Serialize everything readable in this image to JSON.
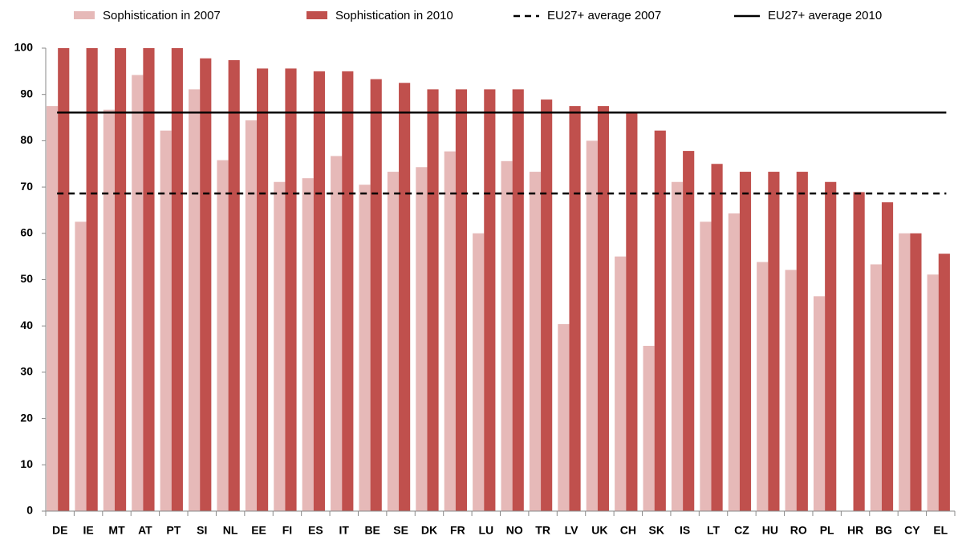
{
  "chart_data": {
    "type": "bar",
    "categories": [
      "DE",
      "IE",
      "MT",
      "AT",
      "PT",
      "SI",
      "NL",
      "EE",
      "FI",
      "ES",
      "IT",
      "BE",
      "SE",
      "DK",
      "FR",
      "LU",
      "NO",
      "TR",
      "LV",
      "UK",
      "CH",
      "SK",
      "IS",
      "LT",
      "CZ",
      "HU",
      "RO",
      "PL",
      "HR",
      "BG",
      "CY",
      "EL"
    ],
    "series": [
      {
        "name": "Sophistication in 2007",
        "color": "#e6b9b8",
        "values": [
          87.5,
          62.5,
          86.7,
          94.2,
          82.2,
          91.1,
          75.8,
          84.4,
          71.1,
          71.9,
          76.7,
          70.5,
          73.3,
          74.3,
          77.7,
          60,
          75.6,
          73.3,
          40.4,
          80,
          55,
          35.7,
          71.1,
          62.5,
          64.3,
          53.8,
          52.1,
          46.4,
          null,
          53.3,
          60,
          51.1
        ]
      },
      {
        "name": "Sophistication in 2010",
        "color": "#c0504d",
        "values": [
          100,
          100,
          100,
          100,
          100,
          97.8,
          97.4,
          95.6,
          95.6,
          95,
          95,
          93.3,
          92.5,
          91.1,
          91.1,
          91.1,
          91.1,
          88.9,
          87.5,
          87.5,
          86.1,
          82.2,
          77.8,
          75,
          73.3,
          73.3,
          73.3,
          71.1,
          68.9,
          66.7,
          60,
          55.6
        ]
      }
    ],
    "reference_lines": [
      {
        "name": "EU27+ average 2007",
        "value": 68.6,
        "color": "#000000",
        "style": "dashed"
      },
      {
        "name": "EU27+ average 2010",
        "value": 86.1,
        "color": "#000000",
        "style": "solid"
      }
    ],
    "ylim": [
      0,
      100
    ],
    "yticks": [
      0,
      10,
      20,
      30,
      40,
      50,
      60,
      70,
      80,
      90,
      100
    ],
    "grid": false,
    "legend": "top"
  }
}
